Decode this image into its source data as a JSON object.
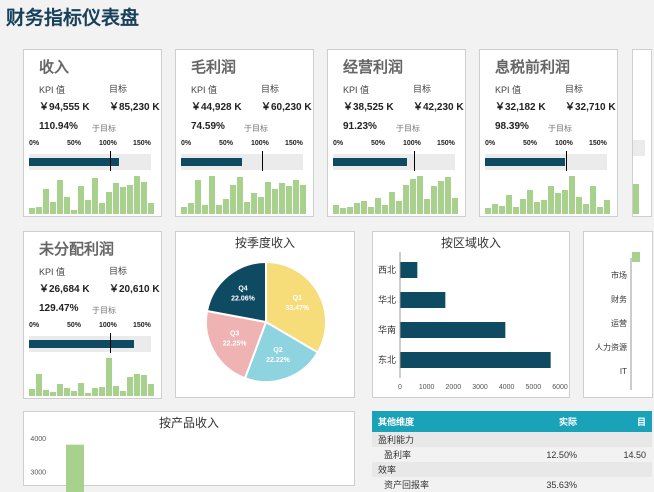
{
  "title": "财务指标仪表盘",
  "labels": {
    "kpi": "KPI 值",
    "target": "目标",
    "of_target": "于目标"
  },
  "scale_ticks": [
    "0%",
    "50%",
    "100%",
    "150%"
  ],
  "kpis": [
    {
      "name": "收入",
      "kpi": "￥94,555 K",
      "target": "￥85,230 K",
      "pct": "110.94%",
      "ratio": 1.1094,
      "bars": [
        10,
        12,
        45,
        22,
        60,
        30,
        8,
        50,
        25,
        65,
        20,
        40,
        55,
        48,
        52,
        68,
        58,
        20
      ]
    },
    {
      "name": "毛利润",
      "kpi": "￥44,928 K",
      "target": "￥60,230 K",
      "pct": "74.59%",
      "ratio": 0.7459,
      "bars": [
        12,
        18,
        55,
        14,
        62,
        15,
        25,
        48,
        60,
        20,
        35,
        28,
        52,
        40,
        50,
        45,
        55,
        48
      ]
    },
    {
      "name": "经营利润",
      "kpi": "￥38,525 K",
      "target": "￥42,230 K",
      "pct": "91.23%",
      "ratio": 0.9123,
      "bars": [
        12,
        8,
        10,
        15,
        18,
        10,
        22,
        12,
        30,
        18,
        40,
        48,
        52,
        20,
        38,
        45,
        50,
        22
      ]
    },
    {
      "name": "息税前利润",
      "kpi": "￥32,182 K",
      "target": "￥32,710 K",
      "pct": "98.39%",
      "ratio": 0.9839,
      "bars": [
        8,
        15,
        12,
        28,
        10,
        22,
        35,
        18,
        20,
        40,
        30,
        35,
        55,
        25,
        15,
        40,
        10,
        20
      ]
    },
    {
      "name": "未分配利润",
      "kpi": "￥26,684 K",
      "target": "￥20,610 K",
      "pct": "129.47%",
      "ratio": 1.2947,
      "bars": [
        18,
        55,
        15,
        10,
        30,
        20,
        12,
        32,
        8,
        20,
        22,
        95,
        25,
        12,
        48,
        55,
        52,
        30
      ]
    }
  ],
  "chart_data": [
    {
      "type": "pie",
      "title": "按季度收入",
      "categories": [
        "Q1",
        "Q2",
        "Q3",
        "Q4"
      ],
      "values": [
        33.47,
        22.22,
        22.25,
        22.06
      ],
      "labels": [
        "33.47%",
        "22.22%",
        "22.25%",
        "22.06%"
      ],
      "colors": [
        "#f7dc7a",
        "#8dd3e0",
        "#efb3b3",
        "#0f4a63"
      ]
    },
    {
      "type": "bar",
      "orientation": "horizontal",
      "title": "按区域收入",
      "categories": [
        "西北",
        "华北",
        "华南",
        "东北"
      ],
      "values": [
        650,
        1700,
        3950,
        5650
      ],
      "xlim": [
        0,
        6000
      ],
      "xticks": [
        "0",
        "1000",
        "2000",
        "3000",
        "4000",
        "5000",
        "6000"
      ],
      "color": "#0f4a63"
    },
    {
      "type": "bar",
      "orientation": "horizontal",
      "title": "",
      "categories": [
        "市场",
        "财务",
        "运营",
        "人力资源",
        "IT"
      ],
      "values": [
        null,
        null,
        null,
        null,
        null
      ],
      "color": "#a9d18e"
    },
    {
      "type": "bar",
      "title": "按产品收入",
      "categories": [
        ""
      ],
      "values": [
        3800
      ],
      "ylim": [
        2500,
        4300
      ],
      "yticks": [
        "4000",
        "3000"
      ],
      "color": "#a9d18e"
    }
  ],
  "table": {
    "headers": [
      "其他维度",
      "实际",
      "目"
    ],
    "rows": [
      {
        "group": true,
        "cells": [
          "盈利能力",
          "",
          ""
        ]
      },
      {
        "group": false,
        "cells": [
          "盈利率",
          "12.50%",
          "14.50"
        ]
      },
      {
        "group": true,
        "cells": [
          "效率",
          "",
          ""
        ]
      },
      {
        "group": false,
        "cells": [
          "资产回报率",
          "35.63%",
          ""
        ]
      }
    ]
  }
}
